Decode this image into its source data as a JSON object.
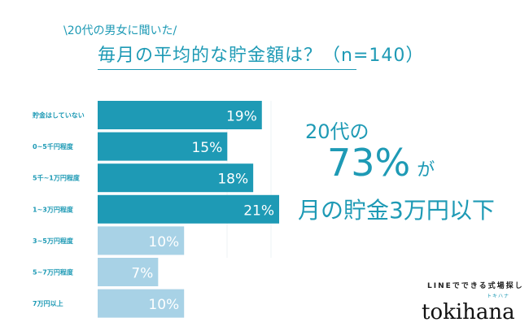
{
  "subtitle": "\\20代の男女に聞いた/",
  "title": "毎月の平均的な貯金額は？（n=140）",
  "chart_data": {
    "type": "bar",
    "orientation": "horizontal",
    "categories": [
      "貯金はしていない",
      "0~5千円程度",
      "5千~1万円程度",
      "1~3万円程度",
      "3~5万円程度",
      "5~7万円程度",
      "7万円以上"
    ],
    "values": [
      19,
      15,
      18,
      21,
      10,
      7,
      10
    ],
    "value_labels": [
      "19%",
      "15%",
      "18%",
      "21%",
      "10%",
      "7%",
      "10%"
    ],
    "unit": "%",
    "colors": {
      "highlight": "#1e9ab5",
      "other": "#a8d2e6"
    },
    "highlighted": [
      true,
      true,
      true,
      true,
      false,
      false,
      false
    ],
    "xlim": [
      0,
      21
    ]
  },
  "headline": {
    "line1": "20代の",
    "big": "73%",
    "particle": "が",
    "line3": "月の貯金3万円以下"
  },
  "brand": {
    "tagline": "LINEでできる式場探し",
    "name": "tokihana",
    "kana": "トキハナ"
  }
}
